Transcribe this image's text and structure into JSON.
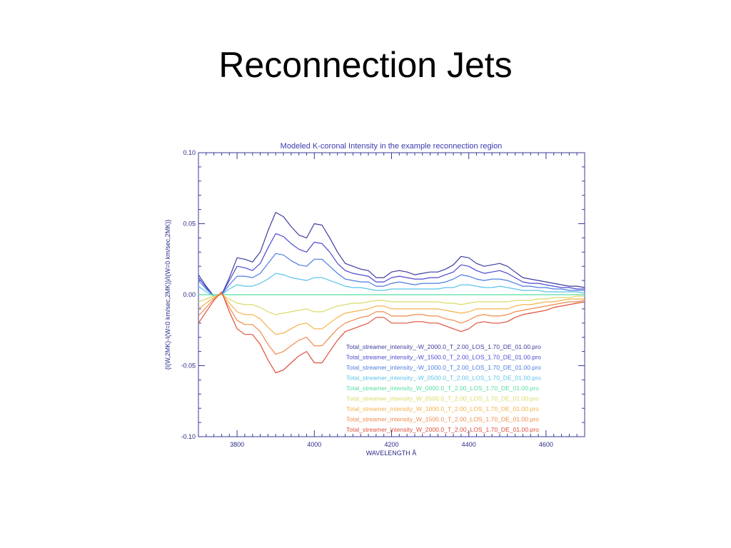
{
  "slide": {
    "title": "Reconnection Jets"
  },
  "chart_data": {
    "type": "line",
    "title": "Modeled K-coronal Intensity in the example reconnection region",
    "xlabel": "WAVELENGTH Å",
    "ylabel": "{I(W,2MK)-I(W=0 km/sec,2MK)}/I(W=0 km/sec,2MK)}",
    "xlim": [
      3700,
      4700
    ],
    "ylim": [
      -0.1,
      0.1
    ],
    "xticks": [
      3800,
      4000,
      4200,
      4400,
      4600
    ],
    "xtick_labels": [
      "3800",
      "4000",
      "4200",
      "4400",
      "4600"
    ],
    "yticks": [
      -0.1,
      -0.05,
      0.0,
      0.05,
      0.1
    ],
    "ytick_labels": [
      "-0.10",
      "-0.05",
      "0.00",
      "0.05",
      "0.10"
    ],
    "grid": false,
    "legend_position": "bottom-right",
    "x": [
      3700,
      3720,
      3740,
      3760,
      3780,
      3800,
      3820,
      3840,
      3860,
      3880,
      3900,
      3920,
      3940,
      3960,
      3980,
      4000,
      4020,
      4040,
      4060,
      4080,
      4100,
      4120,
      4140,
      4160,
      4180,
      4200,
      4220,
      4240,
      4260,
      4280,
      4300,
      4320,
      4340,
      4360,
      4380,
      4400,
      4420,
      4440,
      4460,
      4480,
      4500,
      4520,
      4540,
      4560,
      4580,
      4600,
      4620,
      4640,
      4660,
      4680,
      4700
    ],
    "series": [
      {
        "name": "Total_streamer_intensity_-W_2000.0_T_2.00_LOS_1.70_DE_01.00.pro",
        "color": "#3c3c9e",
        "values": [
          0.014,
          0.006,
          -0.001,
          0.0,
          0.012,
          0.026,
          0.025,
          0.023,
          0.03,
          0.045,
          0.058,
          0.055,
          0.048,
          0.042,
          0.04,
          0.05,
          0.049,
          0.04,
          0.03,
          0.022,
          0.02,
          0.018,
          0.017,
          0.012,
          0.012,
          0.016,
          0.017,
          0.016,
          0.014,
          0.015,
          0.016,
          0.016,
          0.018,
          0.021,
          0.027,
          0.026,
          0.022,
          0.02,
          0.021,
          0.022,
          0.02,
          0.016,
          0.012,
          0.011,
          0.01,
          0.009,
          0.008,
          0.007,
          0.006,
          0.006,
          0.005
        ]
      },
      {
        "name": "Total_streamer_intensity_-W_1500.0_T_2.00_LOS_1.70_DE_01.00.pro",
        "color": "#4a4ad0",
        "values": [
          0.012,
          0.005,
          -0.001,
          0.0,
          0.01,
          0.02,
          0.019,
          0.017,
          0.022,
          0.033,
          0.043,
          0.041,
          0.036,
          0.032,
          0.03,
          0.037,
          0.036,
          0.03,
          0.022,
          0.017,
          0.015,
          0.014,
          0.013,
          0.009,
          0.009,
          0.012,
          0.013,
          0.012,
          0.011,
          0.011,
          0.012,
          0.012,
          0.014,
          0.016,
          0.021,
          0.02,
          0.017,
          0.015,
          0.016,
          0.017,
          0.015,
          0.012,
          0.009,
          0.008,
          0.008,
          0.007,
          0.006,
          0.005,
          0.005,
          0.004,
          0.004
        ]
      },
      {
        "name": "Total_streamer_intensity_-W_1000.0_T_2.00_LOS_1.70_DE_01.00.pro",
        "color": "#4c7de0",
        "values": [
          0.01,
          0.004,
          -0.001,
          0.0,
          0.007,
          0.013,
          0.013,
          0.012,
          0.015,
          0.022,
          0.029,
          0.028,
          0.024,
          0.021,
          0.02,
          0.025,
          0.025,
          0.02,
          0.015,
          0.011,
          0.01,
          0.009,
          0.009,
          0.006,
          0.006,
          0.008,
          0.009,
          0.008,
          0.007,
          0.008,
          0.008,
          0.008,
          0.009,
          0.011,
          0.014,
          0.013,
          0.011,
          0.01,
          0.011,
          0.011,
          0.01,
          0.008,
          0.006,
          0.006,
          0.005,
          0.005,
          0.004,
          0.004,
          0.003,
          0.003,
          0.003
        ]
      },
      {
        "name": "Total_streamer_intensity_-W_0500.0_T_2.00_LOS_1.70_DE_01.00.pro",
        "color": "#5bc3ea",
        "values": [
          0.006,
          0.002,
          -0.001,
          0.0,
          0.004,
          0.007,
          0.006,
          0.006,
          0.008,
          0.011,
          0.015,
          0.014,
          0.012,
          0.011,
          0.01,
          0.012,
          0.012,
          0.01,
          0.008,
          0.006,
          0.005,
          0.005,
          0.004,
          0.003,
          0.003,
          0.004,
          0.004,
          0.004,
          0.004,
          0.004,
          0.004,
          0.004,
          0.005,
          0.005,
          0.007,
          0.007,
          0.006,
          0.005,
          0.005,
          0.006,
          0.005,
          0.004,
          0.003,
          0.003,
          0.003,
          0.002,
          0.002,
          0.002,
          0.002,
          0.002,
          0.001
        ]
      },
      {
        "name": "Total_streamer_intensity_W_0000.0_T_2.00_LOS_1.70_DE_01.00.pro",
        "color": "#55e0a0",
        "values": [
          0,
          0,
          0,
          0,
          0,
          0,
          0,
          0,
          0,
          0,
          0,
          0,
          0,
          0,
          0,
          0,
          0,
          0,
          0,
          0,
          0,
          0,
          0,
          0,
          0,
          0,
          0,
          0,
          0,
          0,
          0,
          0,
          0,
          0,
          0,
          0,
          0,
          0,
          0,
          0,
          0,
          0,
          0,
          0,
          0,
          0,
          0,
          0,
          0,
          0,
          0
        ]
      },
      {
        "name": "Total_streamer_intensity_W_0500.0_T_2.00_LOS_1.70_DE_01.00.pro",
        "color": "#d8dc6a",
        "values": [
          -0.005,
          -0.003,
          -0.001,
          0.0,
          -0.003,
          -0.006,
          -0.007,
          -0.007,
          -0.009,
          -0.012,
          -0.014,
          -0.013,
          -0.012,
          -0.011,
          -0.01,
          -0.012,
          -0.012,
          -0.01,
          -0.008,
          -0.007,
          -0.006,
          -0.006,
          -0.005,
          -0.004,
          -0.004,
          -0.005,
          -0.005,
          -0.005,
          -0.005,
          -0.005,
          -0.005,
          -0.005,
          -0.006,
          -0.006,
          -0.007,
          -0.006,
          -0.005,
          -0.005,
          -0.005,
          -0.005,
          -0.005,
          -0.004,
          -0.004,
          -0.004,
          -0.003,
          -0.003,
          -0.002,
          -0.002,
          -0.002,
          -0.001,
          -0.001
        ]
      },
      {
        "name": "Total_streamer_intensity_W_1000.0_T_2.00_LOS_1.70_DE_01.00.pro",
        "color": "#f5b24a",
        "values": [
          -0.01,
          -0.006,
          -0.002,
          0.001,
          -0.006,
          -0.012,
          -0.014,
          -0.014,
          -0.017,
          -0.023,
          -0.028,
          -0.027,
          -0.024,
          -0.021,
          -0.02,
          -0.024,
          -0.024,
          -0.02,
          -0.016,
          -0.013,
          -0.012,
          -0.011,
          -0.01,
          -0.008,
          -0.008,
          -0.01,
          -0.01,
          -0.01,
          -0.01,
          -0.01,
          -0.01,
          -0.01,
          -0.011,
          -0.012,
          -0.013,
          -0.012,
          -0.01,
          -0.01,
          -0.01,
          -0.01,
          -0.01,
          -0.008,
          -0.007,
          -0.007,
          -0.006,
          -0.005,
          -0.005,
          -0.004,
          -0.003,
          -0.003,
          -0.003
        ]
      },
      {
        "name": "Total_streamer_intensity_W_1500.0_T_2.00_LOS_1.70_DE_01.00.pro",
        "color": "#f08a4c",
        "values": [
          -0.015,
          -0.009,
          -0.003,
          0.001,
          -0.009,
          -0.018,
          -0.021,
          -0.021,
          -0.026,
          -0.035,
          -0.042,
          -0.04,
          -0.036,
          -0.032,
          -0.03,
          -0.036,
          -0.036,
          -0.03,
          -0.024,
          -0.02,
          -0.018,
          -0.016,
          -0.015,
          -0.012,
          -0.012,
          -0.015,
          -0.015,
          -0.015,
          -0.014,
          -0.014,
          -0.015,
          -0.015,
          -0.017,
          -0.018,
          -0.02,
          -0.018,
          -0.015,
          -0.014,
          -0.015,
          -0.015,
          -0.014,
          -0.012,
          -0.011,
          -0.01,
          -0.009,
          -0.008,
          -0.007,
          -0.006,
          -0.005,
          -0.005,
          -0.004
        ]
      },
      {
        "name": "Total_streamer_intensity_W_2000.0_T_2.00_LOS_1.70_DE_01.00.pro",
        "color": "#e0503c",
        "values": [
          -0.02,
          -0.012,
          -0.004,
          0.002,
          -0.012,
          -0.024,
          -0.028,
          -0.028,
          -0.035,
          -0.046,
          -0.055,
          -0.053,
          -0.048,
          -0.043,
          -0.04,
          -0.048,
          -0.048,
          -0.04,
          -0.032,
          -0.026,
          -0.024,
          -0.022,
          -0.02,
          -0.016,
          -0.016,
          -0.02,
          -0.02,
          -0.02,
          -0.019,
          -0.019,
          -0.02,
          -0.02,
          -0.022,
          -0.024,
          -0.026,
          -0.024,
          -0.02,
          -0.019,
          -0.02,
          -0.02,
          -0.019,
          -0.016,
          -0.014,
          -0.013,
          -0.012,
          -0.011,
          -0.009,
          -0.008,
          -0.007,
          -0.006,
          -0.005
        ]
      }
    ]
  }
}
